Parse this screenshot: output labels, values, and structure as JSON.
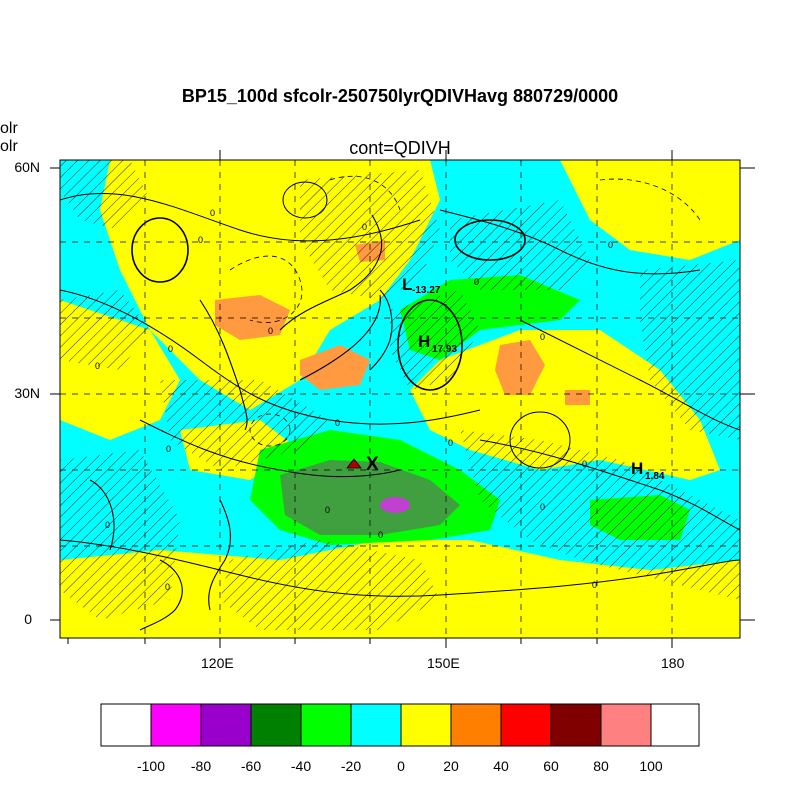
{
  "header": {
    "title": "BP15_100d sfcolr-250750lyrQDIVHavg  880729/0000",
    "left_labels": [
      "olr",
      "olr"
    ],
    "subtitle": "cont=QDIVH"
  },
  "axes": {
    "lon_ticks": [
      "120E",
      "150E",
      "180"
    ],
    "lat_ticks": [
      "60N",
      "30N",
      "0"
    ]
  },
  "annotations": {
    "L": {
      "letter": "L",
      "value": "-13.27"
    },
    "H1": {
      "letter": "H",
      "value": "17.93"
    },
    "H2": {
      "letter": "H",
      "value": "1.84"
    },
    "X": "X",
    "contour_zero": "0"
  },
  "colorbar": {
    "labels": [
      "-100",
      "-80",
      "-60",
      "-40",
      "-20",
      "0",
      "20",
      "40",
      "60",
      "80",
      "100"
    ],
    "colors": [
      "#ffffff",
      "#ff00ff",
      "#9900cc",
      "#008000",
      "#00ff00",
      "#00ffff",
      "#ffff00",
      "#ff8000",
      "#ff0000",
      "#800000",
      "#ff8080",
      "#ffffff"
    ]
  }
}
